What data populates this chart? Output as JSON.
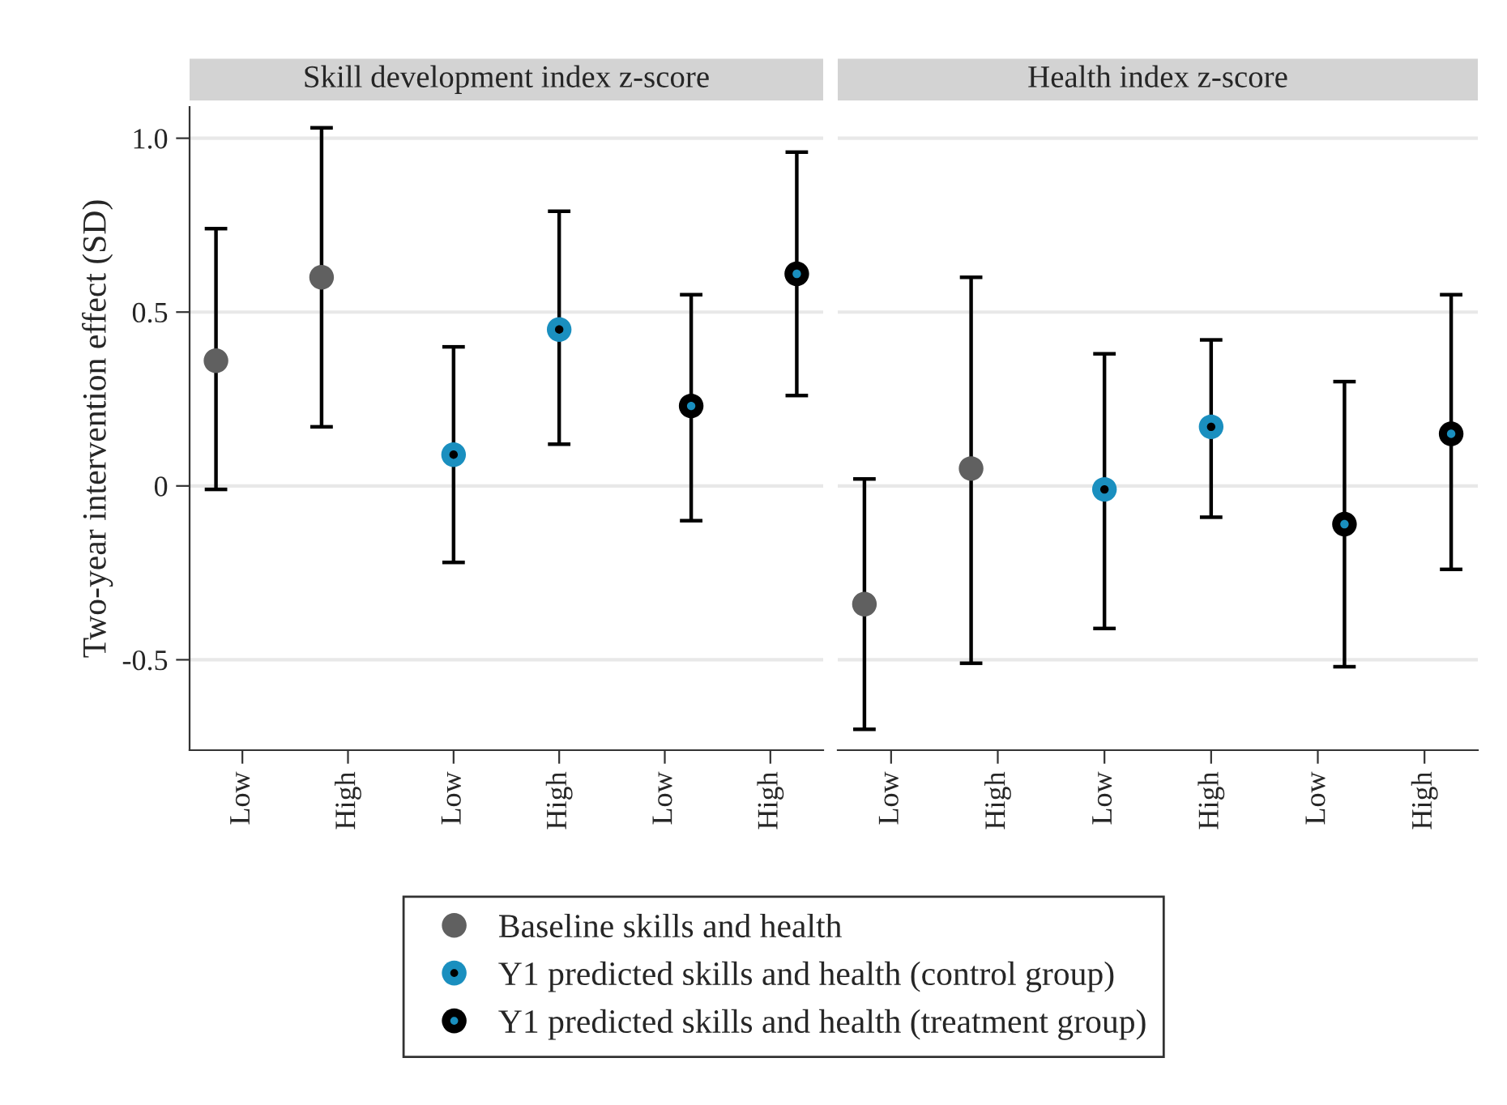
{
  "chart_data": [
    {
      "type": "scatter",
      "title": "Skill development index z-score",
      "ylabel": "Two-year intervention effect (SD)",
      "categories": [
        "Low",
        "High",
        "Low",
        "High",
        "Low",
        "High"
      ],
      "ylim": [
        -0.76,
        1.09
      ],
      "yticks": [
        -0.5,
        0,
        0.5,
        {
          "value": 1,
          "label": "1.0"
        }
      ],
      "grid": "y",
      "marker": "circle",
      "legend": "bottom",
      "series": [
        {
          "name": "Baseline skills and health",
          "color": "#606060",
          "values": [
            0.36,
            0.6,
            null,
            null,
            null,
            null
          ],
          "errors": [
            [
              -0.01,
              0.74
            ],
            [
              0.17,
              1.03
            ],
            null,
            null,
            null,
            null
          ]
        },
        {
          "name": "Y1 predicted skills and health (control group)",
          "color": "#1a8fbf",
          "values": [
            null,
            null,
            0.09,
            0.45,
            null,
            null
          ],
          "errors": [
            null,
            null,
            [
              -0.22,
              0.4
            ],
            [
              0.12,
              0.79
            ],
            null,
            null
          ]
        },
        {
          "name": "Y1 predicted skills and health (treatment group)",
          "color": "#000000",
          "values": [
            null,
            null,
            null,
            null,
            0.23,
            0.61
          ],
          "errors": [
            null,
            null,
            null,
            null,
            [
              -0.1,
              0.55
            ],
            [
              0.26,
              0.96
            ]
          ]
        }
      ]
    },
    {
      "type": "scatter",
      "title": "Health index z-score",
      "categories": [
        "Low",
        "High",
        "Low",
        "High",
        "Low",
        "High"
      ],
      "yticks": [
        -0.5,
        0,
        0.5,
        1
      ],
      "grid": "y",
      "marker": "circle",
      "tick_labels": "x",
      "series": [
        {
          "color": "#606060",
          "values": [
            -0.34,
            0.05,
            null,
            null,
            null,
            null
          ],
          "errors": [
            [
              -0.7,
              0.02
            ],
            [
              -0.51,
              0.6
            ],
            null,
            null,
            null,
            null
          ]
        },
        {
          "color": "#1a8fbf",
          "values": [
            null,
            null,
            -0.01,
            0.17,
            null,
            null
          ],
          "errors": [
            null,
            null,
            [
              -0.41,
              0.38
            ],
            [
              -0.09,
              0.42
            ],
            null,
            null
          ]
        },
        {
          "color": "#000000",
          "values": [
            null,
            null,
            null,
            null,
            -0.11,
            0.15
          ],
          "errors": [
            null,
            null,
            null,
            null,
            [
              -0.52,
              0.3
            ],
            [
              -0.24,
              0.55
            ]
          ]
        }
      ]
    }
  ]
}
